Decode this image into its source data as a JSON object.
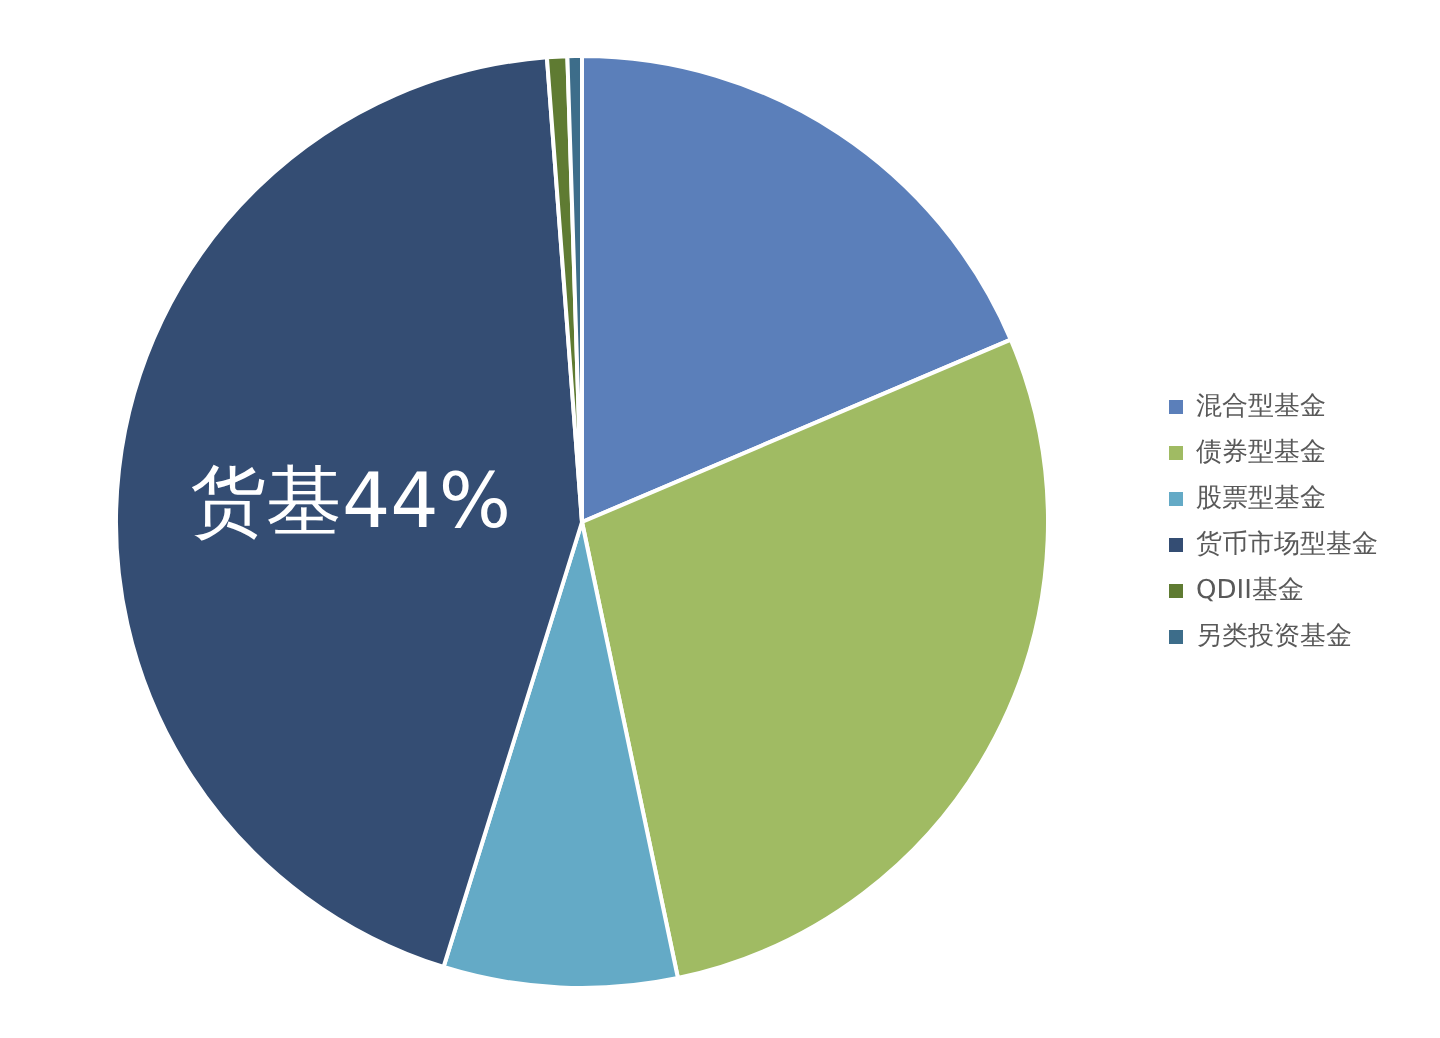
{
  "chart_data": {
    "type": "pie",
    "categories": [
      "混合型基金",
      "债券型基金",
      "股票型基金",
      "货币市场型基金",
      "QDII基金",
      "另类投资基金"
    ],
    "values": [
      18.6,
      28.1,
      8.1,
      44,
      0.7,
      0.5
    ],
    "colors": [
      "#5b7fba",
      "#a0bb63",
      "#64aac6",
      "#344d73",
      "#5f7b32",
      "#3d6d8a"
    ],
    "value_labels": [
      null,
      null,
      null,
      "货基44%",
      null,
      null
    ],
    "legend": "right"
  }
}
